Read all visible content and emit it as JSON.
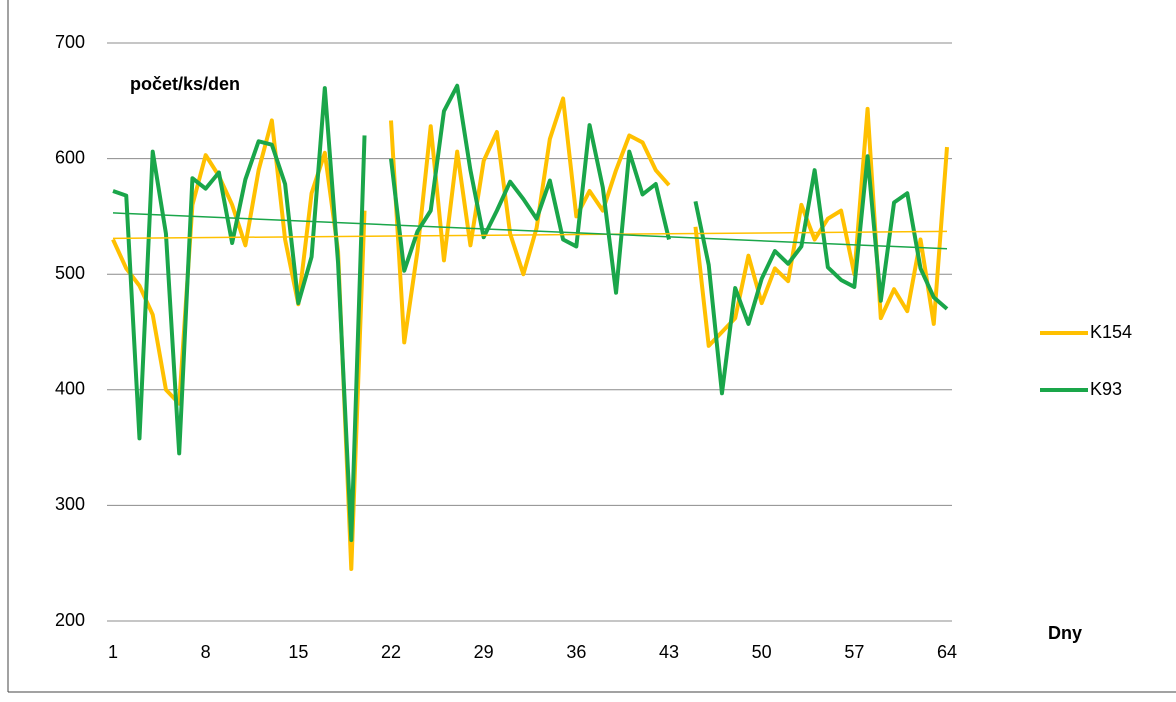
{
  "chart_data": {
    "type": "line",
    "y_axis_label": "počet/ks/den",
    "x_axis_label": "Dny",
    "categories": [
      "1",
      null,
      null,
      null,
      null,
      null,
      null,
      "8",
      null,
      null,
      null,
      null,
      null,
      null,
      "15",
      null,
      null,
      null,
      null,
      null,
      null,
      "22",
      null,
      null,
      null,
      null,
      null,
      null,
      "29",
      null,
      null,
      null,
      null,
      null,
      null,
      "36",
      null,
      null,
      null,
      null,
      null,
      null,
      "43",
      null,
      null,
      null,
      null,
      null,
      null,
      "50",
      null,
      null,
      null,
      null,
      null,
      null,
      "57",
      null,
      null,
      null,
      null,
      null,
      null,
      "64"
    ],
    "ylim": [
      200,
      700
    ],
    "yticks": [
      200,
      300,
      400,
      500,
      600,
      700
    ],
    "grid": true,
    "legend": "right",
    "series": [
      {
        "name": "K154",
        "color": "#ffc000",
        "values": [
          530,
          505,
          490,
          465,
          400,
          388,
          560,
          603,
          585,
          560,
          525,
          590,
          633,
          530,
          474,
          570,
          605,
          520,
          245,
          555,
          null,
          633,
          441,
          520,
          628,
          512,
          606,
          525,
          598,
          623,
          535,
          500,
          540,
          617,
          652,
          550,
          572,
          555,
          590,
          620,
          614,
          590,
          577,
          null,
          541,
          438,
          450,
          462,
          516,
          475,
          505,
          494,
          560,
          530,
          548,
          555,
          500,
          643,
          462,
          487,
          468,
          530,
          457,
          610
        ],
        "trendline": [
          531,
          537
        ]
      },
      {
        "name": "K93",
        "color": "#1aa64a",
        "values": [
          572,
          568,
          358,
          606,
          535,
          345,
          583,
          574,
          588,
          527,
          582,
          615,
          612,
          578,
          475,
          515,
          661,
          510,
          270,
          620,
          null,
          600,
          503,
          537,
          555,
          641,
          663,
          590,
          532,
          555,
          580,
          565,
          548,
          581,
          530,
          524,
          629,
          575,
          484,
          606,
          569,
          578,
          530,
          null,
          563,
          508,
          397,
          488,
          457,
          496,
          520,
          509,
          524,
          590,
          506,
          495,
          489,
          602,
          477,
          562,
          570,
          505,
          480,
          470
        ],
        "trendline": [
          553,
          522
        ]
      }
    ]
  }
}
